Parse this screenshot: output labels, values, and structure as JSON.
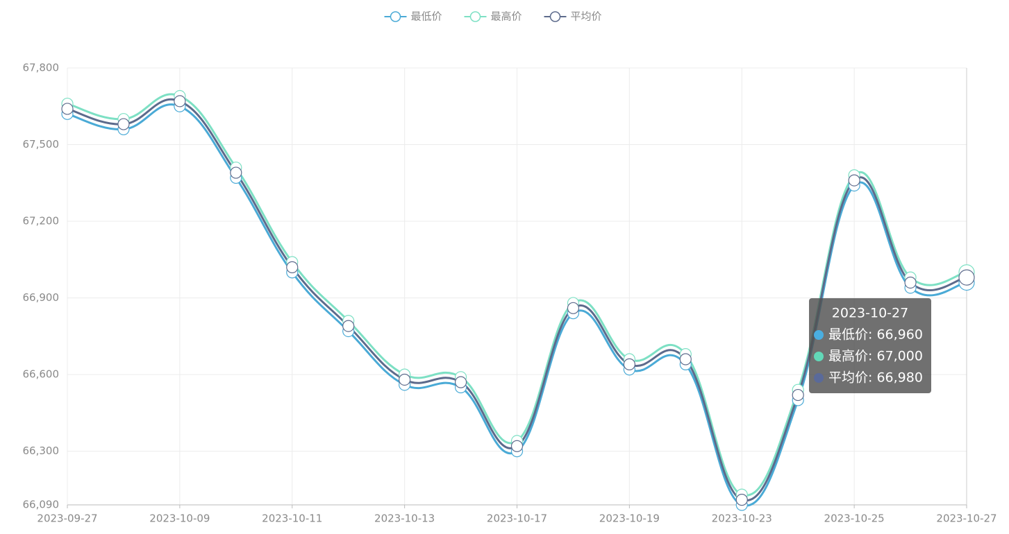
{
  "chart_data": {
    "type": "line",
    "categories": [
      "2023-09-27",
      null,
      "2023-10-09",
      null,
      "2023-10-11",
      null,
      "2023-10-13",
      null,
      "2023-10-17",
      null,
      "2023-10-19",
      null,
      "2023-10-23",
      null,
      "2023-10-25",
      null,
      "2023-10-27"
    ],
    "series": [
      {
        "name": "最低价",
        "color": "#4aaad6",
        "values": [
          67620,
          67560,
          67650,
          67370,
          67000,
          66770,
          66560,
          66550,
          66300,
          66840,
          66620,
          66640,
          66090,
          66500,
          67340,
          66940,
          66960
        ]
      },
      {
        "name": "最高价",
        "color": "#7de0c4",
        "values": [
          67660,
          67600,
          67690,
          67410,
          67040,
          66810,
          66600,
          66590,
          66340,
          66880,
          66660,
          66680,
          66130,
          66540,
          67380,
          66980,
          67000
        ]
      },
      {
        "name": "平均价",
        "color": "#5d6b8c",
        "values": [
          67640,
          67580,
          67670,
          67390,
          67020,
          66790,
          66580,
          66570,
          66320,
          66860,
          66640,
          66660,
          66110,
          66520,
          67360,
          66960,
          66980
        ]
      }
    ],
    "ylim": [
      66090,
      67800
    ],
    "yticks": [
      {
        "value": 66090,
        "label": "66,090"
      },
      {
        "value": 66300,
        "label": "66,300"
      },
      {
        "value": 66600,
        "label": "66,600"
      },
      {
        "value": 66900,
        "label": "66,900"
      },
      {
        "value": 67200,
        "label": "67,200"
      },
      {
        "value": 67500,
        "label": "67,500"
      },
      {
        "value": 67800,
        "label": "67,800"
      }
    ],
    "grid": true,
    "legend": "top",
    "tooltip": {
      "title": "2023-10-27",
      "items": [
        "最低价: 66,960",
        "最高价: 67,000",
        "平均价: 66,980"
      ],
      "colors": [
        "#4aaee0",
        "#62d8b8",
        "#5a6a9a"
      ]
    }
  }
}
